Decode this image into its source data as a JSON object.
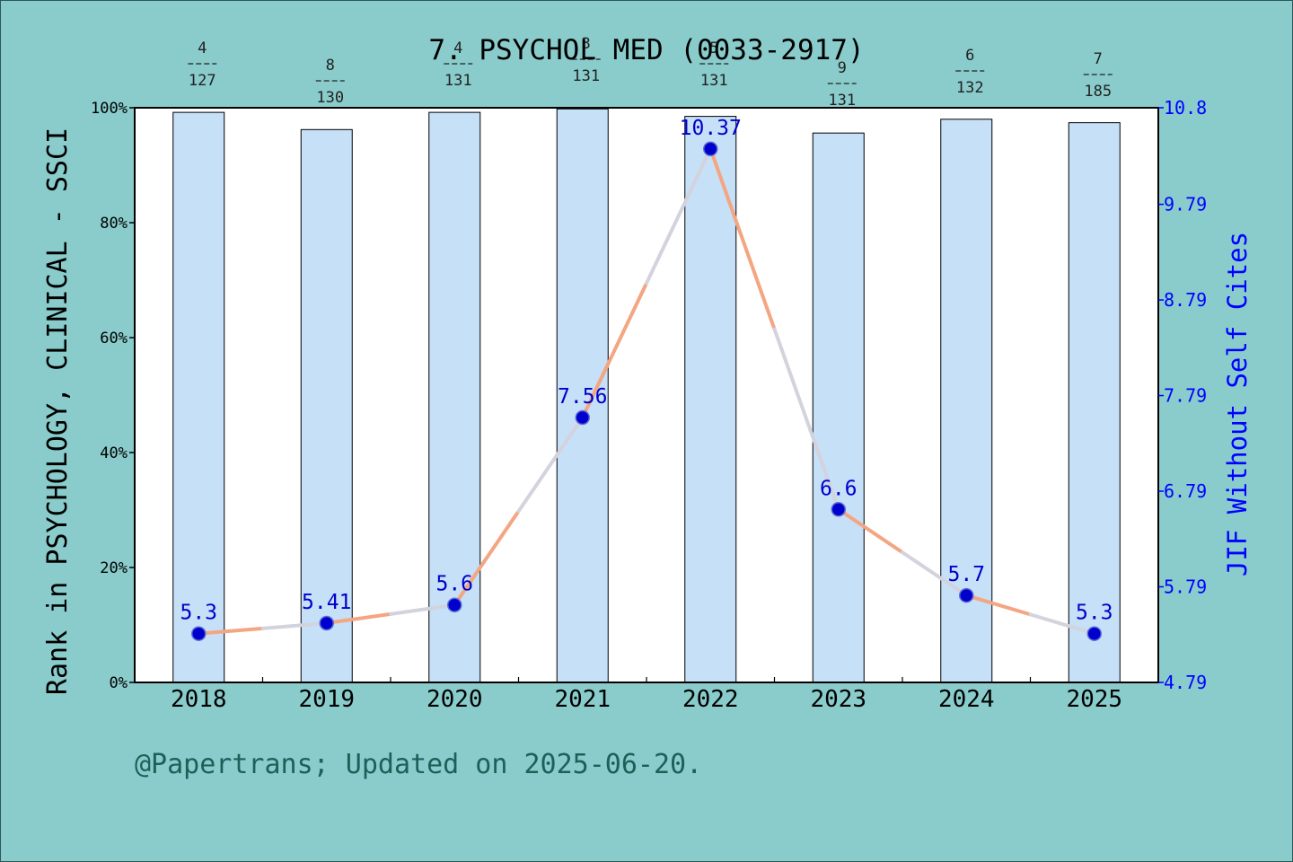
{
  "chart_data": {
    "type": "bar",
    "title": "7. PSYCHOL MED (0033-2917)",
    "ylabel_left": "Rank in PSYCHOLOGY, CLINICAL - SSCI",
    "ylabel_right": "JIF Without Self Cites",
    "categories": [
      "2018",
      "2019",
      "2020",
      "2021",
      "2022",
      "2023",
      "2024",
      "2025"
    ],
    "left_axis": {
      "min": 0,
      "max": 100,
      "ticks": [
        "0%",
        "20%",
        "40%",
        "60%",
        "80%",
        "100%"
      ]
    },
    "right_axis": {
      "min": 4.79,
      "max": 10.8,
      "ticks": [
        "4.79",
        "5.79",
        "6.79",
        "7.79",
        "8.79",
        "9.79",
        "10.8"
      ]
    },
    "series": [
      {
        "type": "bar",
        "values": [
          99.2,
          96.2,
          99.2,
          99.8,
          98.5,
          95.6,
          98.0,
          97.4
        ]
      },
      {
        "type": "line",
        "axis": "right",
        "values": [
          5.3,
          5.41,
          5.6,
          7.56,
          10.37,
          6.6,
          5.7,
          5.3
        ],
        "labels": [
          "5.3",
          "5.41",
          "5.6",
          "7.56",
          "10.37",
          "6.6",
          "5.7",
          "5.3"
        ]
      }
    ],
    "rank_labels": [
      {
        "rank": "4",
        "total": "127"
      },
      {
        "rank": "8",
        "total": "130"
      },
      {
        "rank": "4",
        "total": "131"
      },
      {
        "rank": "3",
        "total": "131"
      },
      {
        "rank": "5",
        "total": "131"
      },
      {
        "rank": "9",
        "total": "131"
      },
      {
        "rank": "6",
        "total": "132"
      },
      {
        "rank": "7",
        "total": "185"
      }
    ],
    "colors": {
      "bar_fill": "#c5e0f7",
      "line": "#f4a582",
      "line_highlight": "#d3d3de",
      "marker": "#0000cc",
      "value_label": "#0000cc",
      "right_axis": "#0000ff"
    }
  },
  "footer": "@Papertrans; Updated on 2025-06-20."
}
